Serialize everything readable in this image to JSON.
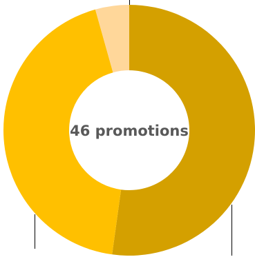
{
  "chart_data": {
    "type": "pie",
    "subtype": "donut",
    "center_label": "46 promotions",
    "values": [
      24,
      20,
      2
    ],
    "colors": [
      "#D4A000",
      "#FFC000",
      "#FFD79A"
    ],
    "start_direction": "top",
    "clockwise": true,
    "legend": "none"
  }
}
